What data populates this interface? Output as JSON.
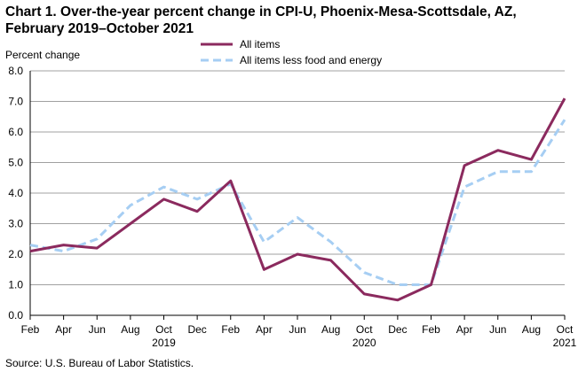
{
  "chart_data": {
    "type": "line",
    "title": [
      "Chart 1. Over-the-year percent change in CPI-U, Phoenix-Mesa-Scottsdale,  AZ,",
      "February 2019–October 2021"
    ],
    "ylabel": "Percent change",
    "xlabel": "",
    "ylim": [
      0,
      8
    ],
    "yticks": [
      "0.0",
      "1.0",
      "2.0",
      "3.0",
      "4.0",
      "5.0",
      "6.0",
      "7.0",
      "8.0"
    ],
    "grid": true,
    "x_months": [
      "Feb",
      "Apr",
      "Jun",
      "Aug",
      "Oct",
      "Dec",
      "Feb",
      "Apr",
      "Jun",
      "Aug",
      "Oct",
      "Dec",
      "Feb",
      "Apr",
      "Jun",
      "Aug",
      "Oct"
    ],
    "x_years": [
      {
        "label": "2019",
        "index": 4
      },
      {
        "label": "2020",
        "index": 10
      },
      {
        "label": "2021",
        "index": 16
      }
    ],
    "legend_position": "top-center",
    "series": [
      {
        "name": "All items",
        "color": "#8b2a5e",
        "style": "solid",
        "values": [
          2.1,
          2.3,
          2.2,
          3.0,
          3.8,
          3.4,
          4.4,
          1.5,
          2.0,
          1.8,
          0.7,
          0.5,
          1.0,
          4.9,
          5.4,
          5.1,
          7.1
        ]
      },
      {
        "name": "All items less food and energy",
        "color": "#a6cef3",
        "style": "dashed",
        "values": [
          2.3,
          2.1,
          2.5,
          3.6,
          4.2,
          3.8,
          4.3,
          2.4,
          3.2,
          2.4,
          1.4,
          1.0,
          1.0,
          4.2,
          4.7,
          4.7,
          6.4
        ]
      }
    ]
  },
  "source": "Source: U.S. Bureau  of Labor Statistics."
}
